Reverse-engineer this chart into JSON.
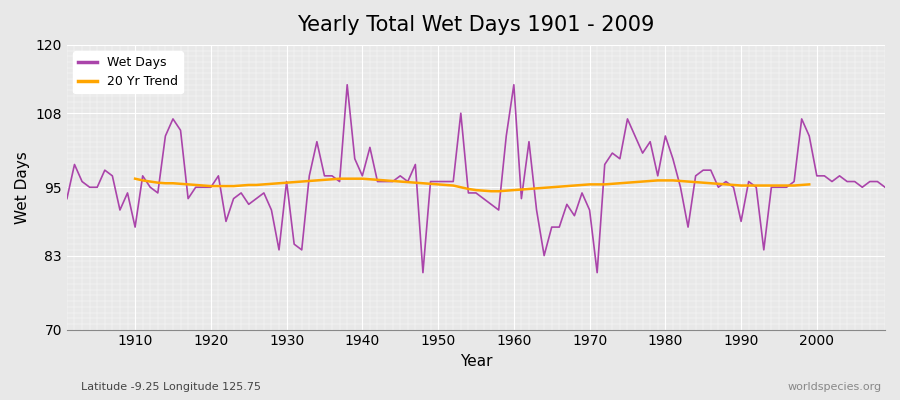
{
  "title": "Yearly Total Wet Days 1901 - 2009",
  "xlabel": "Year",
  "ylabel": "Wet Days",
  "xlim": [
    1901,
    2009
  ],
  "ylim": [
    70,
    120
  ],
  "yticks": [
    70,
    83,
    95,
    108,
    120
  ],
  "xticks": [
    1910,
    1920,
    1930,
    1940,
    1950,
    1960,
    1970,
    1980,
    1990,
    2000
  ],
  "wet_days_color": "#AA44AA",
  "trend_color": "#FFA500",
  "bg_color": "#E8E8E8",
  "grid_color": "#FFFFFF",
  "legend_labels": [
    "Wet Days",
    "20 Yr Trend"
  ],
  "subtitle": "Latitude -9.25 Longitude 125.75",
  "watermark": "worldspecies.org",
  "wet_days": {
    "1901": 93,
    "1902": 99,
    "1903": 96,
    "1904": 95,
    "1905": 95,
    "1906": 98,
    "1907": 97,
    "1908": 91,
    "1909": 94,
    "1910": 88,
    "1911": 97,
    "1912": 95,
    "1913": 94,
    "1914": 104,
    "1915": 107,
    "1916": 105,
    "1917": 93,
    "1918": 95,
    "1919": 95,
    "1920": 95,
    "1921": 97,
    "1922": 89,
    "1923": 93,
    "1924": 94,
    "1925": 92,
    "1926": 93,
    "1927": 94,
    "1928": 91,
    "1929": 84,
    "1930": 96,
    "1931": 85,
    "1932": 84,
    "1933": 97,
    "1934": 103,
    "1935": 97,
    "1936": 97,
    "1937": 96,
    "1938": 113,
    "1939": 100,
    "1940": 97,
    "1941": 102,
    "1942": 96,
    "1943": 96,
    "1944": 96,
    "1945": 97,
    "1946": 96,
    "1947": 99,
    "1948": 80,
    "1949": 96,
    "1950": 96,
    "1951": 96,
    "1952": 96,
    "1953": 108,
    "1954": 94,
    "1955": 94,
    "1956": 93,
    "1957": 92,
    "1958": 91,
    "1959": 104,
    "1960": 113,
    "1961": 93,
    "1962": 103,
    "1963": 91,
    "1964": 83,
    "1965": 88,
    "1966": 88,
    "1967": 92,
    "1968": 90,
    "1969": 94,
    "1970": 91,
    "1971": 80,
    "1972": 99,
    "1973": 101,
    "1974": 100,
    "1975": 107,
    "1976": 104,
    "1977": 101,
    "1978": 103,
    "1979": 97,
    "1980": 104,
    "1981": 100,
    "1982": 95,
    "1983": 88,
    "1984": 97,
    "1985": 98,
    "1986": 98,
    "1987": 95,
    "1988": 96,
    "1989": 95,
    "1990": 89,
    "1991": 96,
    "1992": 95,
    "1993": 84,
    "1994": 95,
    "1995": 95,
    "1996": 95,
    "1997": 96,
    "1998": 107,
    "1999": 104,
    "2000": 97,
    "2001": 97,
    "2002": 96,
    "2003": 97,
    "2004": 96,
    "2005": 96,
    "2006": 95,
    "2007": 96,
    "2008": 96,
    "2009": 95
  },
  "trend_days": {
    "1910": 96.5,
    "1911": 96.2,
    "1912": 96.0,
    "1913": 95.8,
    "1914": 95.7,
    "1915": 95.7,
    "1916": 95.6,
    "1917": 95.5,
    "1918": 95.4,
    "1919": 95.3,
    "1920": 95.2,
    "1921": 95.2,
    "1922": 95.2,
    "1923": 95.2,
    "1924": 95.3,
    "1925": 95.4,
    "1926": 95.4,
    "1927": 95.5,
    "1928": 95.6,
    "1929": 95.7,
    "1930": 95.8,
    "1931": 95.9,
    "1932": 96.0,
    "1933": 96.1,
    "1934": 96.2,
    "1935": 96.3,
    "1936": 96.4,
    "1937": 96.5,
    "1938": 96.5,
    "1939": 96.5,
    "1940": 96.5,
    "1941": 96.4,
    "1942": 96.3,
    "1943": 96.2,
    "1944": 96.1,
    "1945": 96.0,
    "1946": 95.9,
    "1947": 95.8,
    "1948": 95.7,
    "1949": 95.6,
    "1950": 95.5,
    "1951": 95.4,
    "1952": 95.3,
    "1953": 95.0,
    "1954": 94.7,
    "1955": 94.5,
    "1956": 94.4,
    "1957": 94.3,
    "1958": 94.3,
    "1959": 94.4,
    "1960": 94.5,
    "1961": 94.6,
    "1962": 94.7,
    "1963": 94.8,
    "1964": 94.9,
    "1965": 95.0,
    "1966": 95.1,
    "1967": 95.2,
    "1968": 95.3,
    "1969": 95.4,
    "1970": 95.5,
    "1971": 95.5,
    "1972": 95.5,
    "1973": 95.6,
    "1974": 95.7,
    "1975": 95.8,
    "1976": 95.9,
    "1977": 96.0,
    "1978": 96.1,
    "1979": 96.2,
    "1980": 96.2,
    "1981": 96.2,
    "1982": 96.1,
    "1983": 96.0,
    "1984": 95.9,
    "1985": 95.8,
    "1986": 95.7,
    "1987": 95.6,
    "1988": 95.5,
    "1989": 95.4,
    "1990": 95.3,
    "1991": 95.3,
    "1992": 95.3,
    "1993": 95.3,
    "1994": 95.3,
    "1995": 95.3,
    "1996": 95.3,
    "1997": 95.3,
    "1998": 95.4,
    "1999": 95.5
  }
}
